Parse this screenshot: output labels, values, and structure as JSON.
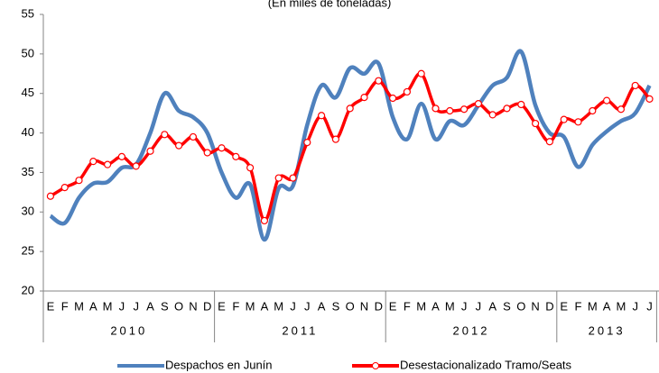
{
  "chart_data": {
    "type": "line",
    "title": "(En miles de toneladas)",
    "year_groups": [
      {
        "label": "2010",
        "months": [
          "E",
          "F",
          "M",
          "A",
          "M",
          "J",
          "J",
          "A",
          "S",
          "O",
          "N",
          "D"
        ]
      },
      {
        "label": "2011",
        "months": [
          "E",
          "F",
          "M",
          "A",
          "M",
          "J",
          "J",
          "A",
          "S",
          "O",
          "N",
          "D"
        ]
      },
      {
        "label": "2012",
        "months": [
          "E",
          "F",
          "M",
          "A",
          "M",
          "J",
          "J",
          "A",
          "S",
          "O",
          "N",
          "D"
        ]
      },
      {
        "label": "2013",
        "months": [
          "E",
          "F",
          "M",
          "A",
          "M",
          "J",
          "J"
        ]
      }
    ],
    "series": [
      {
        "name": "Despachos en Junín",
        "color": "#4f81bd",
        "markers": false,
        "values": [
          29.5,
          28.6,
          31.8,
          33.6,
          33.8,
          35.6,
          36.0,
          40.0,
          45.0,
          42.8,
          42.0,
          40.0,
          35.0,
          31.8,
          33.5,
          26.5,
          33.0,
          33.3,
          41.0,
          46.0,
          44.5,
          48.2,
          47.5,
          48.8,
          42.0,
          39.2,
          43.7,
          39.2,
          41.5,
          41.0,
          43.5,
          46.0,
          47.0,
          50.3,
          43.5,
          40.0,
          39.5,
          35.7,
          38.5,
          40.2,
          41.5,
          42.5,
          46.0
        ]
      },
      {
        "name": "Desestacionalizado Tramo/Seats",
        "color": "#ff0000",
        "markers": true,
        "values": [
          32.0,
          33.1,
          34.0,
          36.4,
          36.0,
          37.0,
          35.8,
          37.7,
          39.8,
          38.4,
          39.5,
          37.5,
          38.1,
          37.0,
          35.6,
          28.9,
          34.3,
          34.3,
          38.8,
          42.2,
          39.2,
          43.1,
          44.5,
          46.6,
          44.4,
          45.2,
          47.5,
          43.1,
          42.8,
          43.0,
          43.7,
          42.3,
          43.1,
          43.6,
          41.2,
          38.9,
          41.7,
          41.4,
          42.8,
          44.1,
          43.0,
          46.0,
          44.3
        ]
      }
    ],
    "ylim": [
      20,
      55
    ],
    "yticks": [
      20,
      25,
      30,
      35,
      40,
      45,
      50,
      55
    ],
    "grid": false,
    "legend": "bottom"
  }
}
